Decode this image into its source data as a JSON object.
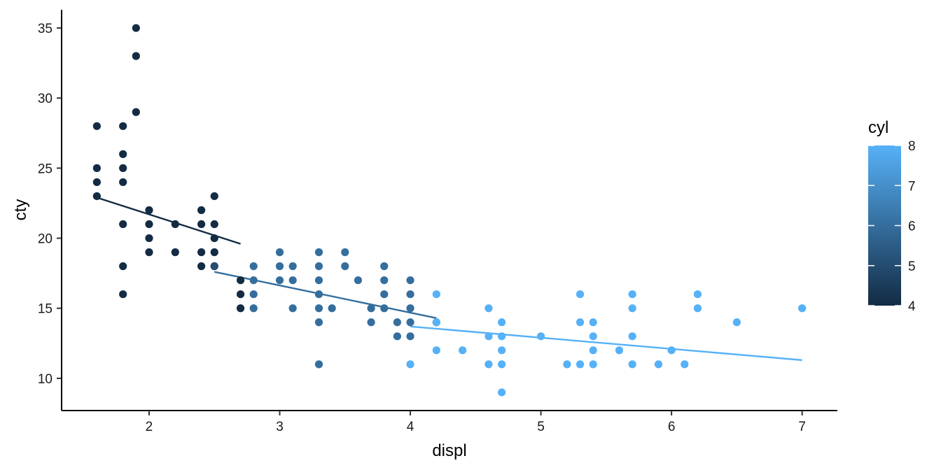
{
  "chart_data": {
    "type": "scatter",
    "xlabel": "displ",
    "ylabel": "cty",
    "xlim": [
      1.33,
      7.27
    ],
    "ylim": [
      7.7,
      36.3
    ],
    "x_ticks": [
      "2",
      "3",
      "4",
      "5",
      "6",
      "7"
    ],
    "y_ticks": [
      "10",
      "15",
      "20",
      "25",
      "30",
      "35"
    ],
    "grid": false,
    "color_scale": {
      "title": "cyl",
      "min": 4,
      "max": 8,
      "low_color": "#132B43",
      "high_color": "#56B1F7",
      "ticks": [
        "4",
        "5",
        "6",
        "7",
        "8"
      ],
      "placement": "right"
    },
    "points": [
      {
        "x": 1.6,
        "y": 28,
        "cyl": 4
      },
      {
        "x": 1.6,
        "y": 25,
        "cyl": 4
      },
      {
        "x": 1.6,
        "y": 24,
        "cyl": 4
      },
      {
        "x": 1.6,
        "y": 23,
        "cyl": 4
      },
      {
        "x": 1.8,
        "y": 28,
        "cyl": 4
      },
      {
        "x": 1.8,
        "y": 26,
        "cyl": 4
      },
      {
        "x": 1.8,
        "y": 25,
        "cyl": 4
      },
      {
        "x": 1.8,
        "y": 24,
        "cyl": 4
      },
      {
        "x": 1.8,
        "y": 21,
        "cyl": 4
      },
      {
        "x": 1.8,
        "y": 18,
        "cyl": 4
      },
      {
        "x": 1.8,
        "y": 16,
        "cyl": 4
      },
      {
        "x": 1.9,
        "y": 35,
        "cyl": 4
      },
      {
        "x": 1.9,
        "y": 33,
        "cyl": 4
      },
      {
        "x": 1.9,
        "y": 29,
        "cyl": 4
      },
      {
        "x": 2.0,
        "y": 22,
        "cyl": 4
      },
      {
        "x": 2.0,
        "y": 21,
        "cyl": 4
      },
      {
        "x": 2.0,
        "y": 20,
        "cyl": 4
      },
      {
        "x": 2.0,
        "y": 19,
        "cyl": 4
      },
      {
        "x": 2.2,
        "y": 21,
        "cyl": 4
      },
      {
        "x": 2.2,
        "y": 19,
        "cyl": 4
      },
      {
        "x": 2.4,
        "y": 22,
        "cyl": 4
      },
      {
        "x": 2.4,
        "y": 21,
        "cyl": 4
      },
      {
        "x": 2.4,
        "y": 19,
        "cyl": 4
      },
      {
        "x": 2.4,
        "y": 18,
        "cyl": 4
      },
      {
        "x": 2.5,
        "y": 23,
        "cyl": 4
      },
      {
        "x": 2.5,
        "y": 21,
        "cyl": 4
      },
      {
        "x": 2.5,
        "y": 20,
        "cyl": 4
      },
      {
        "x": 2.5,
        "y": 19,
        "cyl": 4
      },
      {
        "x": 2.5,
        "y": 18,
        "cyl": 4
      },
      {
        "x": 2.7,
        "y": 17,
        "cyl": 4
      },
      {
        "x": 2.7,
        "y": 16,
        "cyl": 4
      },
      {
        "x": 2.7,
        "y": 15,
        "cyl": 4
      },
      {
        "x": 2.5,
        "y": 18,
        "cyl": 5
      },
      {
        "x": 2.8,
        "y": 18,
        "cyl": 6
      },
      {
        "x": 2.8,
        "y": 17,
        "cyl": 6
      },
      {
        "x": 2.8,
        "y": 16,
        "cyl": 6
      },
      {
        "x": 2.8,
        "y": 15,
        "cyl": 6
      },
      {
        "x": 3.0,
        "y": 19,
        "cyl": 6
      },
      {
        "x": 3.0,
        "y": 18,
        "cyl": 6
      },
      {
        "x": 3.0,
        "y": 17,
        "cyl": 6
      },
      {
        "x": 3.1,
        "y": 18,
        "cyl": 6
      },
      {
        "x": 3.1,
        "y": 17,
        "cyl": 6
      },
      {
        "x": 3.1,
        "y": 15,
        "cyl": 6
      },
      {
        "x": 3.3,
        "y": 19,
        "cyl": 6
      },
      {
        "x": 3.3,
        "y": 18,
        "cyl": 6
      },
      {
        "x": 3.3,
        "y": 17,
        "cyl": 6
      },
      {
        "x": 3.3,
        "y": 16,
        "cyl": 6
      },
      {
        "x": 3.3,
        "y": 15,
        "cyl": 6
      },
      {
        "x": 3.3,
        "y": 14,
        "cyl": 6
      },
      {
        "x": 3.3,
        "y": 11,
        "cyl": 6
      },
      {
        "x": 3.4,
        "y": 15,
        "cyl": 6
      },
      {
        "x": 3.5,
        "y": 19,
        "cyl": 6
      },
      {
        "x": 3.5,
        "y": 18,
        "cyl": 6
      },
      {
        "x": 3.6,
        "y": 17,
        "cyl": 6
      },
      {
        "x": 3.7,
        "y": 15,
        "cyl": 6
      },
      {
        "x": 3.7,
        "y": 14,
        "cyl": 6
      },
      {
        "x": 3.8,
        "y": 18,
        "cyl": 6
      },
      {
        "x": 3.8,
        "y": 17,
        "cyl": 6
      },
      {
        "x": 3.8,
        "y": 16,
        "cyl": 6
      },
      {
        "x": 3.8,
        "y": 15,
        "cyl": 6
      },
      {
        "x": 3.9,
        "y": 14,
        "cyl": 6
      },
      {
        "x": 3.9,
        "y": 13,
        "cyl": 6
      },
      {
        "x": 4.0,
        "y": 17,
        "cyl": 6
      },
      {
        "x": 4.0,
        "y": 16,
        "cyl": 6
      },
      {
        "x": 4.0,
        "y": 15,
        "cyl": 6
      },
      {
        "x": 4.0,
        "y": 14,
        "cyl": 6
      },
      {
        "x": 4.0,
        "y": 13,
        "cyl": 6
      },
      {
        "x": 4.2,
        "y": 14,
        "cyl": 6
      },
      {
        "x": 4.0,
        "y": 11,
        "cyl": 8
      },
      {
        "x": 4.2,
        "y": 16,
        "cyl": 8
      },
      {
        "x": 4.2,
        "y": 14,
        "cyl": 8
      },
      {
        "x": 4.2,
        "y": 12,
        "cyl": 8
      },
      {
        "x": 4.4,
        "y": 12,
        "cyl": 8
      },
      {
        "x": 4.6,
        "y": 15,
        "cyl": 8
      },
      {
        "x": 4.6,
        "y": 13,
        "cyl": 8
      },
      {
        "x": 4.6,
        "y": 11,
        "cyl": 8
      },
      {
        "x": 4.7,
        "y": 14,
        "cyl": 8
      },
      {
        "x": 4.7,
        "y": 13,
        "cyl": 8
      },
      {
        "x": 4.7,
        "y": 12,
        "cyl": 8
      },
      {
        "x": 4.7,
        "y": 11,
        "cyl": 8
      },
      {
        "x": 4.7,
        "y": 9,
        "cyl": 8
      },
      {
        "x": 5.0,
        "y": 13,
        "cyl": 8
      },
      {
        "x": 5.2,
        "y": 11,
        "cyl": 8
      },
      {
        "x": 5.3,
        "y": 16,
        "cyl": 8
      },
      {
        "x": 5.3,
        "y": 14,
        "cyl": 8
      },
      {
        "x": 5.3,
        "y": 11,
        "cyl": 8
      },
      {
        "x": 5.4,
        "y": 14,
        "cyl": 8
      },
      {
        "x": 5.4,
        "y": 13,
        "cyl": 8
      },
      {
        "x": 5.4,
        "y": 12,
        "cyl": 8
      },
      {
        "x": 5.4,
        "y": 11,
        "cyl": 8
      },
      {
        "x": 5.6,
        "y": 12,
        "cyl": 8
      },
      {
        "x": 5.7,
        "y": 16,
        "cyl": 8
      },
      {
        "x": 5.7,
        "y": 15,
        "cyl": 8
      },
      {
        "x": 5.7,
        "y": 13,
        "cyl": 8
      },
      {
        "x": 5.7,
        "y": 11,
        "cyl": 8
      },
      {
        "x": 5.9,
        "y": 11,
        "cyl": 8
      },
      {
        "x": 6.0,
        "y": 12,
        "cyl": 8
      },
      {
        "x": 6.1,
        "y": 11,
        "cyl": 8
      },
      {
        "x": 6.2,
        "y": 16,
        "cyl": 8
      },
      {
        "x": 6.2,
        "y": 15,
        "cyl": 8
      },
      {
        "x": 6.5,
        "y": 14,
        "cyl": 8
      },
      {
        "x": 7.0,
        "y": 15,
        "cyl": 8
      }
    ],
    "fit_lines": [
      {
        "cyl": 4,
        "x": [
          1.6,
          2.7
        ],
        "y": [
          22.9,
          19.6
        ]
      },
      {
        "cyl": 6,
        "x": [
          2.5,
          4.2
        ],
        "y": [
          17.6,
          14.3
        ]
      },
      {
        "cyl": 8,
        "x": [
          4.0,
          7.0
        ],
        "y": [
          13.7,
          11.3
        ]
      }
    ]
  }
}
